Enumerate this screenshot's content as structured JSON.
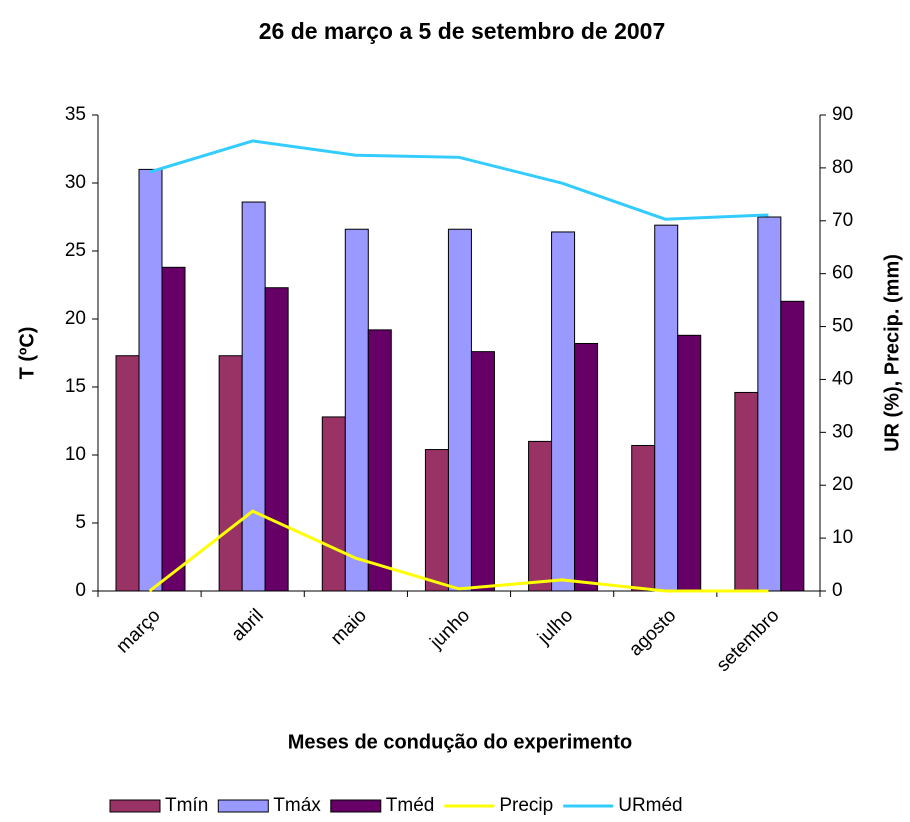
{
  "chart_data": {
    "type": "bar",
    "title": "26 de março a 5 de setembro de 2007",
    "x_label": "Meses de condução do experimento",
    "y_label": "T (ºC)",
    "y2_label": "UR (%), Precip. (mm)",
    "categories": [
      "março",
      "abril",
      "maio",
      "junho",
      "julho",
      "agosto",
      "setembro"
    ],
    "series": [
      {
        "name": "Tmín",
        "type": "bar",
        "color": "#993366",
        "values": [
          17.3,
          17.3,
          12.8,
          10.4,
          11.0,
          10.7,
          14.6
        ]
      },
      {
        "name": "Tmáx",
        "type": "bar",
        "color": "#9999ff",
        "values": [
          31.0,
          28.6,
          26.6,
          26.6,
          26.4,
          26.9,
          27.5
        ]
      },
      {
        "name": "Tméd",
        "type": "bar",
        "color": "#660066",
        "values": [
          23.8,
          22.3,
          19.2,
          17.6,
          18.2,
          18.8,
          21.3
        ]
      },
      {
        "name": "Precip",
        "type": "line",
        "axis": "y2",
        "color": "#ffff00",
        "values": [
          0,
          15.1,
          6.2,
          0.4,
          2.1,
          0,
          0
        ]
      },
      {
        "name": "URméd",
        "type": "line",
        "axis": "y2",
        "color": "#33ccff",
        "values": [
          79.2,
          85.1,
          82.4,
          82.0,
          77.1,
          70.3,
          71.1
        ]
      }
    ],
    "ylim": [
      0,
      35
    ],
    "yticks": [
      0,
      5,
      10,
      15,
      20,
      25,
      30,
      35
    ],
    "y2lim": [
      0,
      90
    ],
    "y2ticks": [
      0,
      10,
      20,
      30,
      40,
      50,
      60,
      70,
      80,
      90
    ],
    "grid": false,
    "legend": "bottom"
  }
}
